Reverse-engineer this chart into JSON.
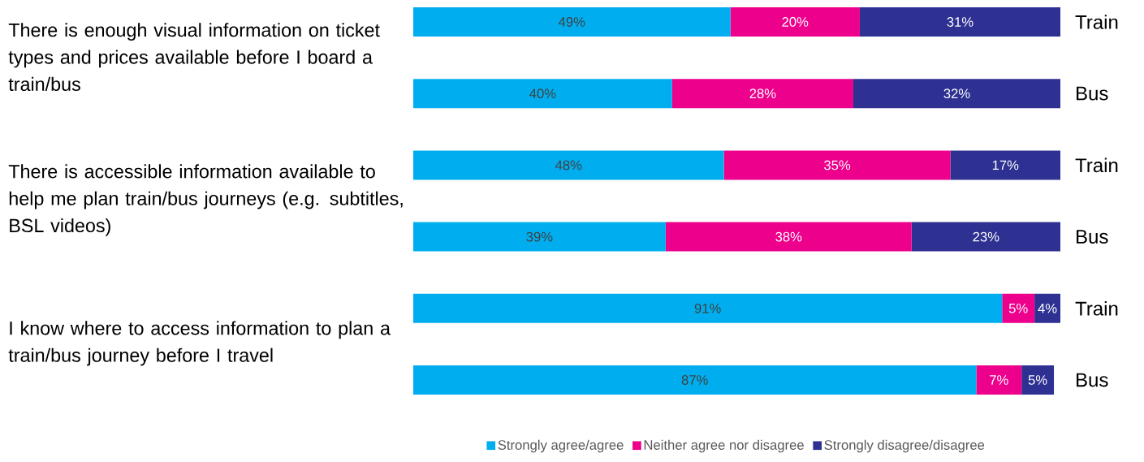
{
  "chart_data": {
    "type": "bar",
    "orientation": "horizontal",
    "stacked": true,
    "categories": [
      "Train",
      "Bus",
      "Train",
      "Bus",
      "Train",
      "Bus"
    ],
    "series": [
      {
        "name": "Strongly agree/agree",
        "color": "#00aeef",
        "values": [
          49,
          40,
          48,
          39,
          91,
          87
        ],
        "value_labels": [
          "49%",
          "40%",
          "48%",
          "39%",
          "91%",
          "87%"
        ]
      },
      {
        "name": "Neither agree nor disagree",
        "color": "#ec008c",
        "values": [
          20,
          28,
          35,
          38,
          5,
          7
        ],
        "value_labels": [
          "20%",
          "28%",
          "35%",
          "38%",
          "5%",
          "7%"
        ]
      },
      {
        "name": "Strongly disagree/disagree",
        "color": "#2e3192",
        "values": [
          31,
          32,
          17,
          23,
          4,
          5
        ],
        "value_labels": [
          "31%",
          "32%",
          "17%",
          "23%",
          "4%",
          "5%"
        ]
      }
    ],
    "xlim": [
      0,
      100
    ],
    "tick_labels": "y",
    "legend": "bottom",
    "annotations": [
      "There is enough visual information on ticket types and prices available before I board a train/bus",
      "There is accessible information available to help me plan train/bus journeys (e.g. subtitles, BSL videos)",
      "I know where to access information to plan a train/bus journey before I travel"
    ]
  }
}
